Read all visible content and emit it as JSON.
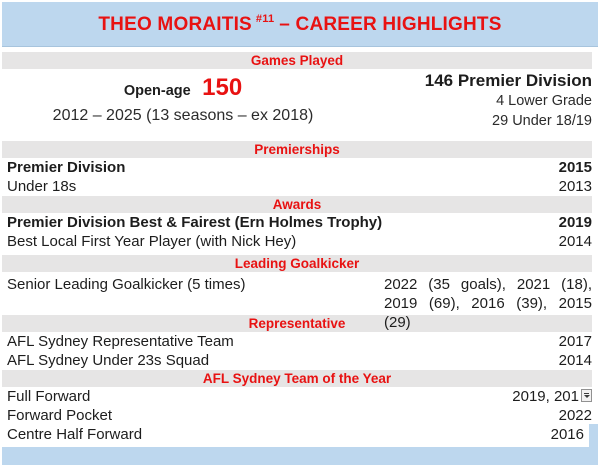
{
  "colors": {
    "accent_red": "#e81212",
    "band_blue": "#bdd7ee",
    "band_gray": "#e6e5e5"
  },
  "title": {
    "player": "THEO MORAITIS",
    "jersey": "#11",
    "rest": "– CAREER HIGHLIGHTS"
  },
  "games_played": {
    "header": "Games Played",
    "open_age_label": "Open-age",
    "open_age_value": "150",
    "seasons": "2012 – 2025 (13 seasons – ex 2018)",
    "breakdown": [
      {
        "text": "146 Premier Division"
      },
      {
        "text": "4 Lower Grade"
      },
      {
        "text": "29 Under 18/19"
      }
    ]
  },
  "premierships": {
    "header": "Premierships",
    "rows": [
      {
        "label": "Premier Division",
        "year": "2015"
      },
      {
        "label": "Under 18s",
        "year": "2013"
      }
    ]
  },
  "awards": {
    "header": "Awards",
    "rows": [
      {
        "label": "Premier Division Best & Fairest (Ern Holmes Trophy)",
        "year": "2019"
      },
      {
        "label": "Best Local First Year Player (with Nick Hey)",
        "year": "2014"
      }
    ]
  },
  "leading_goalkicker": {
    "header": "Leading Goalkicker",
    "label": "Senior Leading Goalkicker (5 times)",
    "years_line1": "2022 (35 goals), 2021 (18),",
    "years_line2": "2019 (69), 2016 (39), 2015 (29)"
  },
  "representative": {
    "header": "Representative",
    "rows": [
      {
        "label": "AFL Sydney Representative Team",
        "year": "2017"
      },
      {
        "label": "AFL Sydney Under 23s Squad",
        "year": "2014"
      }
    ]
  },
  "team_of_the_year": {
    "header": "AFL Sydney Team of the Year",
    "rows": [
      {
        "label": "Full Forward",
        "year": "2019, 201"
      },
      {
        "label": "Forward Pocket",
        "year": "2022"
      },
      {
        "label": "Centre Half Forward",
        "year": "2016"
      }
    ]
  }
}
